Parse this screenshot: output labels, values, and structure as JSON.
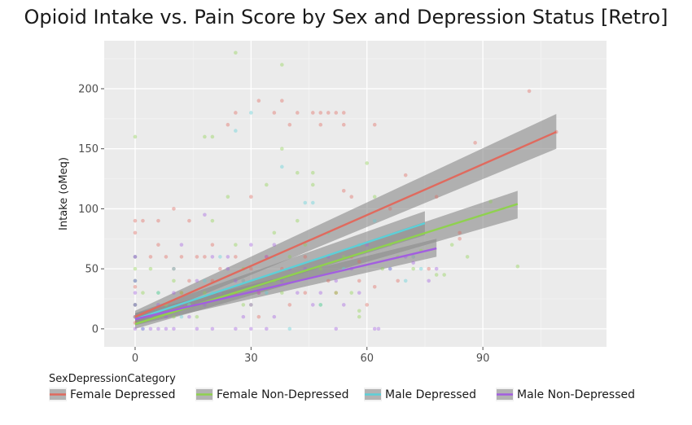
{
  "chart_data": {
    "type": "scatter",
    "title": "Opioid Intake vs. Pain Score by Sex and Depression Status [Retro]",
    "xlabel": "",
    "ylabel": "Intake (oMeq)",
    "xlim": [
      -8,
      122
    ],
    "ylim": [
      -15,
      240
    ],
    "x_ticks": [
      0,
      30,
      60,
      90
    ],
    "x_tick_labels": [
      "0",
      "30",
      "60",
      "90"
    ],
    "y_ticks": [
      0,
      50,
      100,
      150,
      200
    ],
    "y_tick_labels": [
      "0",
      "50",
      "100",
      "150",
      "200"
    ],
    "background": "#ebebeb",
    "grid": true,
    "point_alpha": 0.4,
    "legend": {
      "title": "SexDepressionCategory",
      "position": "bottom"
    },
    "series": [
      {
        "name": "Female Depressed",
        "color": "#e06a5e",
        "fit": {
          "x": [
            0,
            109
          ],
          "y": [
            10,
            164
          ],
          "ci_low": [
            5,
            150
          ],
          "ci_high": [
            15,
            179
          ]
        },
        "points": [
          [
            0,
            90
          ],
          [
            0,
            80
          ],
          [
            0,
            60
          ],
          [
            0,
            35
          ],
          [
            0,
            20
          ],
          [
            0,
            10
          ],
          [
            0,
            5
          ],
          [
            2,
            90
          ],
          [
            4,
            60
          ],
          [
            6,
            90
          ],
          [
            6,
            70
          ],
          [
            8,
            60
          ],
          [
            10,
            100
          ],
          [
            10,
            50
          ],
          [
            12,
            60
          ],
          [
            12,
            30
          ],
          [
            14,
            40
          ],
          [
            16,
            60
          ],
          [
            18,
            60
          ],
          [
            20,
            40
          ],
          [
            22,
            50
          ],
          [
            24,
            170
          ],
          [
            26,
            180
          ],
          [
            26,
            60
          ],
          [
            28,
            40
          ],
          [
            30,
            110
          ],
          [
            30,
            50
          ],
          [
            32,
            190
          ],
          [
            32,
            30
          ],
          [
            34,
            60
          ],
          [
            36,
            180
          ],
          [
            38,
            190
          ],
          [
            38,
            50
          ],
          [
            40,
            170
          ],
          [
            42,
            180
          ],
          [
            44,
            60
          ],
          [
            46,
            180
          ],
          [
            48,
            170
          ],
          [
            48,
            180
          ],
          [
            50,
            180
          ],
          [
            50,
            40
          ],
          [
            52,
            180
          ],
          [
            54,
            170
          ],
          [
            54,
            180
          ],
          [
            56,
            110
          ],
          [
            56,
            60
          ],
          [
            58,
            40
          ],
          [
            60,
            20
          ],
          [
            62,
            170
          ],
          [
            66,
            100
          ],
          [
            70,
            128
          ],
          [
            72,
            60
          ],
          [
            76,
            50
          ],
          [
            78,
            110
          ],
          [
            84,
            80
          ],
          [
            84,
            75
          ],
          [
            88,
            155
          ],
          [
            102,
            198
          ],
          [
            109,
            164
          ],
          [
            14,
            90
          ],
          [
            20,
            70
          ],
          [
            26,
            30
          ],
          [
            32,
            10
          ],
          [
            40,
            20
          ],
          [
            44,
            30
          ],
          [
            52,
            30
          ],
          [
            54,
            115
          ],
          [
            58,
            56
          ],
          [
            62,
            35
          ],
          [
            68,
            40
          ]
        ]
      },
      {
        "name": "Female Non-Depressed",
        "color": "#8fd14f",
        "fit": {
          "x": [
            0,
            99
          ],
          "y": [
            4,
            104
          ],
          "ci_low": [
            0,
            92
          ],
          "ci_high": [
            8,
            115
          ]
        },
        "points": [
          [
            0,
            160
          ],
          [
            0,
            50
          ],
          [
            0,
            40
          ],
          [
            0,
            20
          ],
          [
            0,
            10
          ],
          [
            2,
            30
          ],
          [
            4,
            50
          ],
          [
            6,
            30
          ],
          [
            8,
            20
          ],
          [
            10,
            40
          ],
          [
            12,
            30
          ],
          [
            14,
            20
          ],
          [
            16,
            10
          ],
          [
            18,
            160
          ],
          [
            20,
            90
          ],
          [
            20,
            160
          ],
          [
            22,
            30
          ],
          [
            24,
            110
          ],
          [
            26,
            230
          ],
          [
            26,
            70
          ],
          [
            28,
            50
          ],
          [
            30,
            20
          ],
          [
            34,
            120
          ],
          [
            36,
            80
          ],
          [
            38,
            220
          ],
          [
            38,
            150
          ],
          [
            38,
            30
          ],
          [
            40,
            60
          ],
          [
            42,
            130
          ],
          [
            42,
            90
          ],
          [
            44,
            70
          ],
          [
            46,
            130
          ],
          [
            46,
            120
          ],
          [
            48,
            20
          ],
          [
            50,
            80
          ],
          [
            52,
            30
          ],
          [
            54,
            60
          ],
          [
            56,
            30
          ],
          [
            58,
            10
          ],
          [
            60,
            138
          ],
          [
            62,
            110
          ],
          [
            64,
            50
          ],
          [
            68,
            60
          ],
          [
            72,
            50
          ],
          [
            74,
            65
          ],
          [
            78,
            45
          ],
          [
            80,
            45
          ],
          [
            86,
            60
          ],
          [
            92,
            106
          ],
          [
            99,
            52
          ],
          [
            10,
            10
          ],
          [
            18,
            30
          ],
          [
            28,
            20
          ],
          [
            36,
            40
          ],
          [
            48,
            50
          ],
          [
            58,
            15
          ],
          [
            66,
            70
          ],
          [
            82,
            70
          ]
        ]
      },
      {
        "name": "Male Depressed",
        "color": "#5cd0d8",
        "fit": {
          "x": [
            0,
            75
          ],
          "y": [
            8,
            88
          ],
          "ci_low": [
            3,
            78
          ],
          "ci_high": [
            13,
            98
          ]
        },
        "points": [
          [
            0,
            60
          ],
          [
            0,
            40
          ],
          [
            0,
            20
          ],
          [
            2,
            0
          ],
          [
            6,
            30
          ],
          [
            10,
            50
          ],
          [
            14,
            20
          ],
          [
            18,
            40
          ],
          [
            20,
            30
          ],
          [
            22,
            60
          ],
          [
            26,
            165
          ],
          [
            30,
            180
          ],
          [
            34,
            30
          ],
          [
            38,
            135
          ],
          [
            40,
            0
          ],
          [
            44,
            105
          ],
          [
            46,
            105
          ],
          [
            48,
            20
          ],
          [
            50,
            80
          ],
          [
            54,
            50
          ],
          [
            58,
            70
          ],
          [
            62,
            90
          ],
          [
            66,
            50
          ],
          [
            70,
            40
          ],
          [
            72,
            60
          ],
          [
            74,
            50
          ],
          [
            12,
            10
          ],
          [
            28,
            40
          ],
          [
            36,
            60
          ]
        ]
      },
      {
        "name": "Male Non-Depressed",
        "color": "#a25ee0",
        "fit": {
          "x": [
            0,
            78
          ],
          "y": [
            8,
            67
          ],
          "ci_low": [
            3,
            60
          ],
          "ci_high": [
            13,
            75
          ]
        },
        "points": [
          [
            0,
            60
          ],
          [
            0,
            40
          ],
          [
            0,
            30
          ],
          [
            0,
            20
          ],
          [
            0,
            10
          ],
          [
            0,
            0
          ],
          [
            2,
            0
          ],
          [
            4,
            0
          ],
          [
            6,
            0
          ],
          [
            8,
            0
          ],
          [
            10,
            0
          ],
          [
            4,
            10
          ],
          [
            6,
            20
          ],
          [
            8,
            10
          ],
          [
            10,
            30
          ],
          [
            12,
            20
          ],
          [
            14,
            10
          ],
          [
            16,
            40
          ],
          [
            18,
            20
          ],
          [
            20,
            60
          ],
          [
            22,
            30
          ],
          [
            24,
            50
          ],
          [
            26,
            40
          ],
          [
            28,
            10
          ],
          [
            30,
            20
          ],
          [
            32,
            30
          ],
          [
            34,
            60
          ],
          [
            36,
            10
          ],
          [
            38,
            40
          ],
          [
            40,
            50
          ],
          [
            42,
            30
          ],
          [
            44,
            50
          ],
          [
            46,
            20
          ],
          [
            48,
            30
          ],
          [
            50,
            60
          ],
          [
            52,
            40
          ],
          [
            54,
            20
          ],
          [
            56,
            50
          ],
          [
            58,
            30
          ],
          [
            60,
            70
          ],
          [
            62,
            0
          ],
          [
            63,
            0
          ],
          [
            66,
            50
          ],
          [
            70,
            60
          ],
          [
            72,
            55
          ],
          [
            76,
            40
          ],
          [
            78,
            50
          ],
          [
            12,
            70
          ],
          [
            18,
            95
          ],
          [
            24,
            60
          ],
          [
            30,
            70
          ],
          [
            36,
            70
          ],
          [
            52,
            0
          ],
          [
            16,
            0
          ],
          [
            20,
            0
          ],
          [
            26,
            0
          ],
          [
            30,
            0
          ],
          [
            34,
            0
          ]
        ]
      }
    ]
  }
}
